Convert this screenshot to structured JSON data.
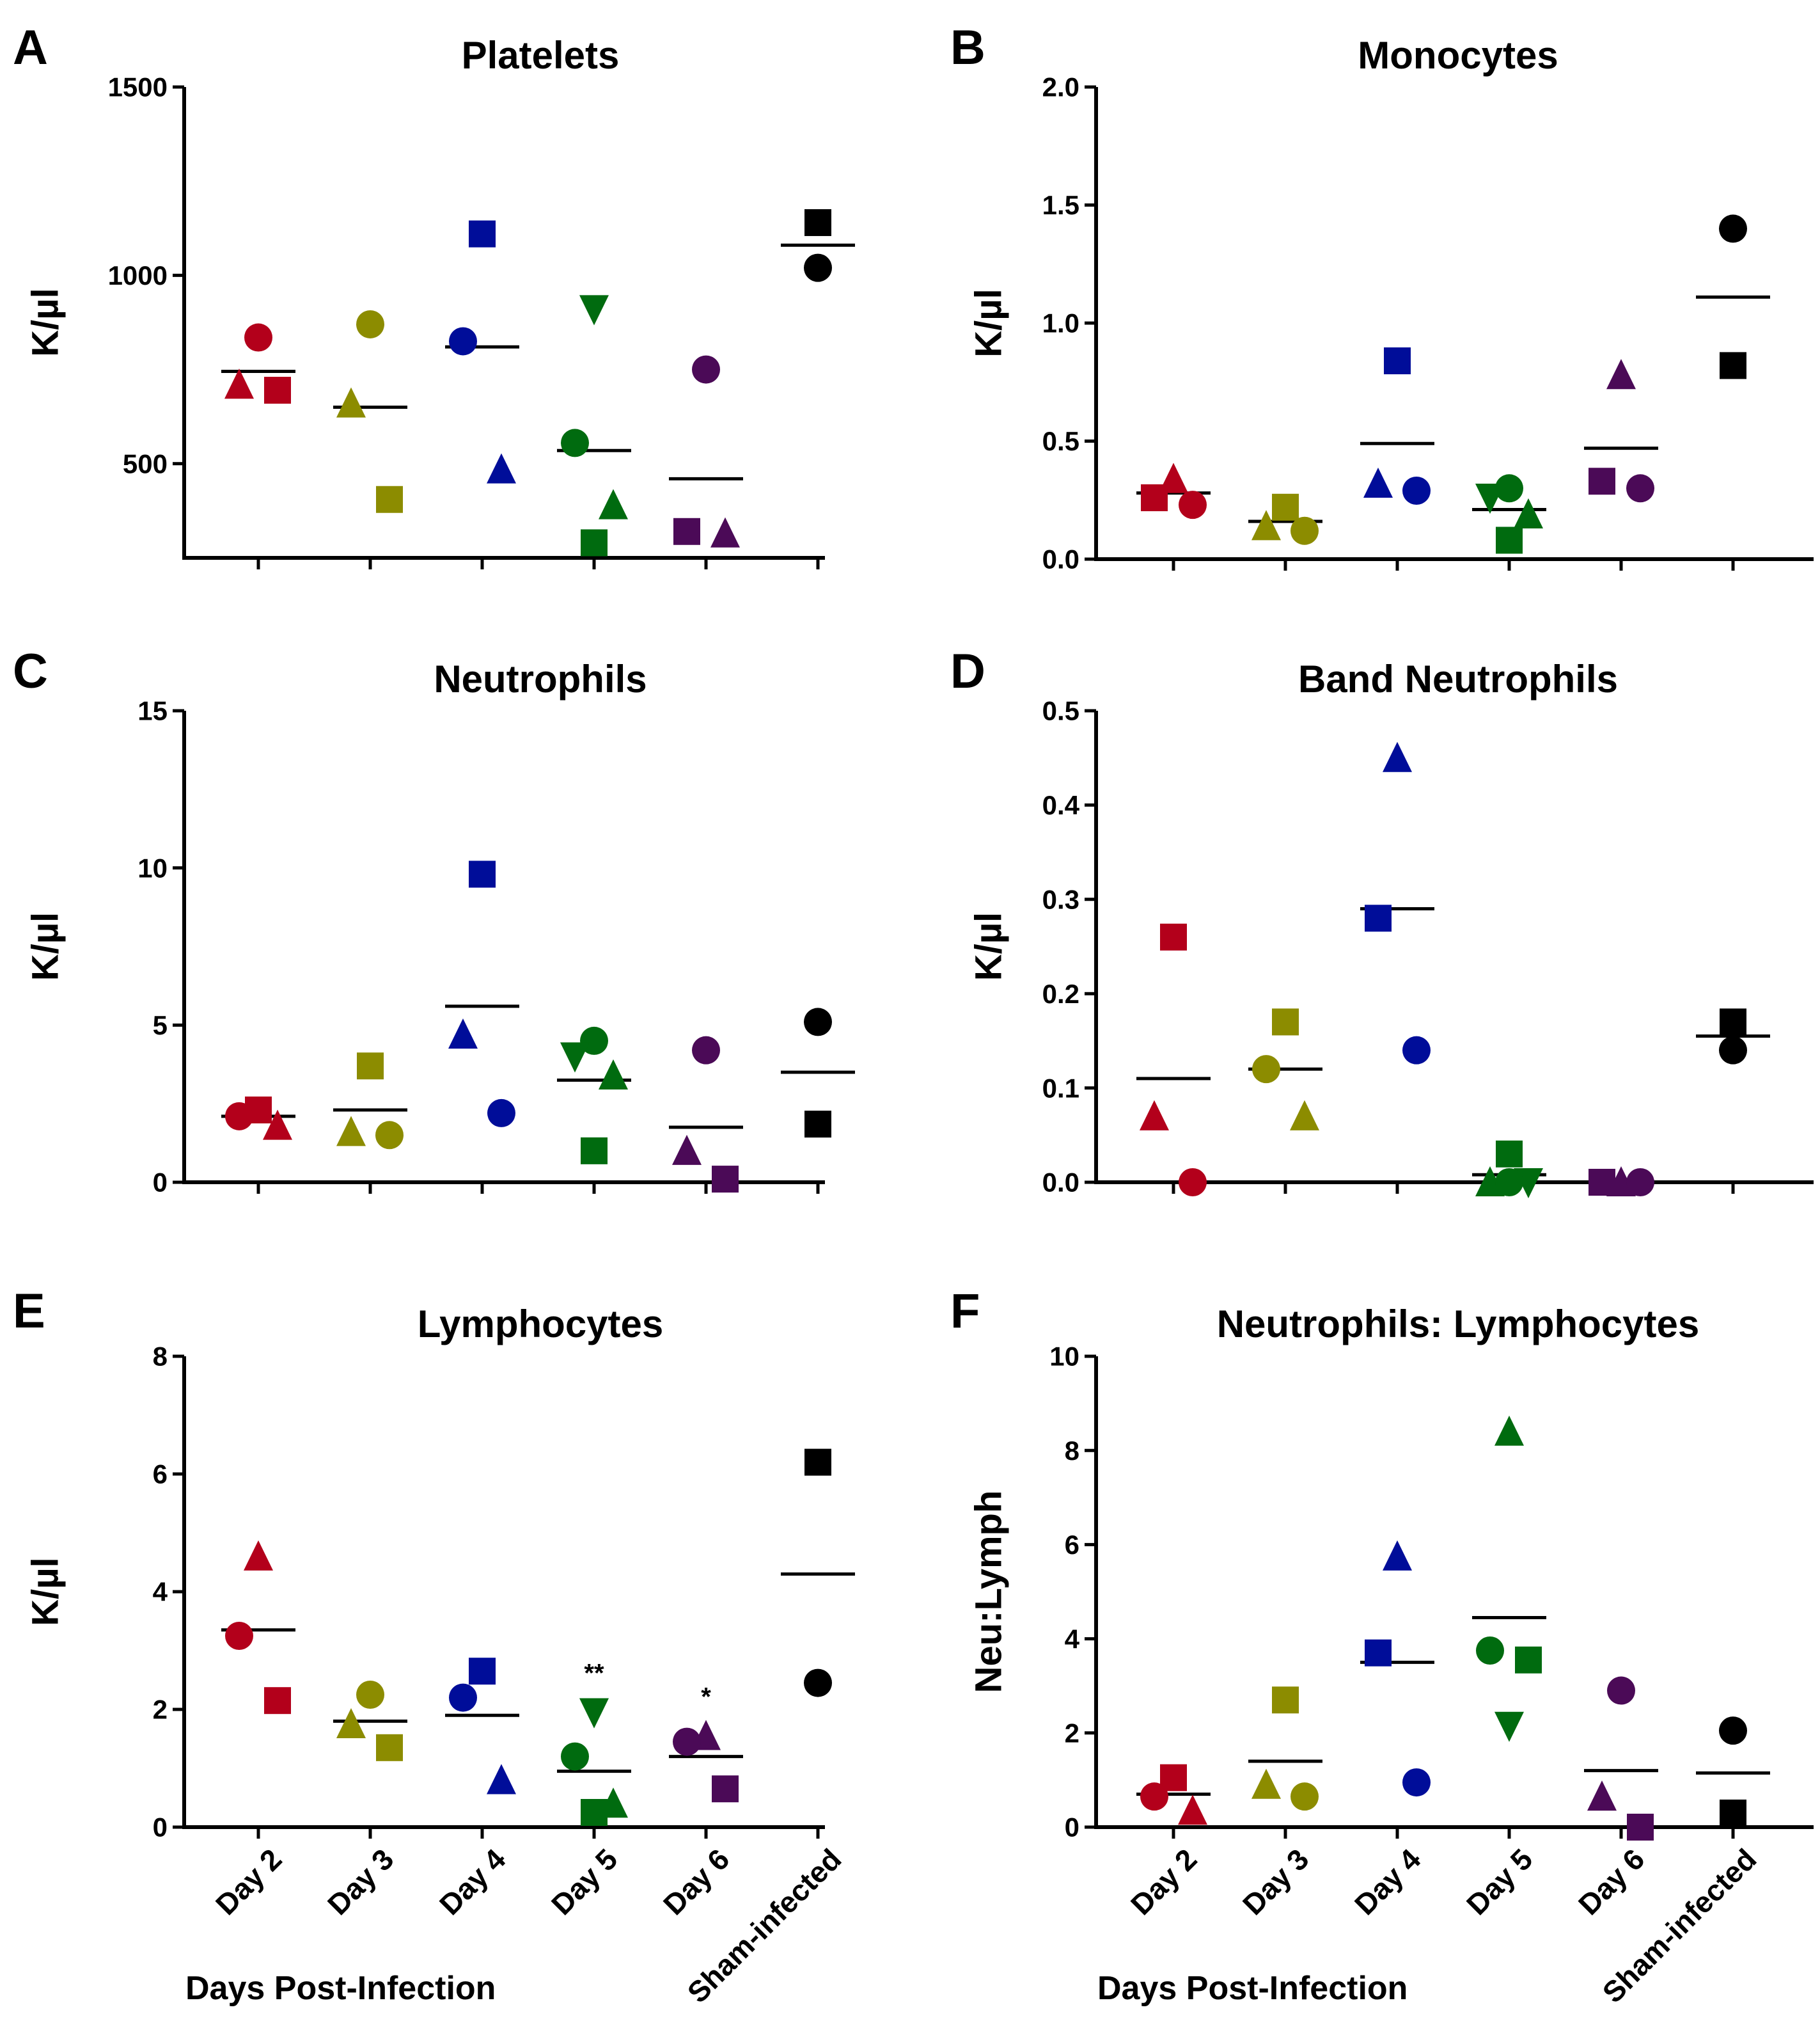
{
  "figure": {
    "categories": [
      "Day 2",
      "Day 3",
      "Day 4",
      "Day 5",
      "Day 6",
      "Sham-infected"
    ],
    "category_colors": [
      "#b3001b",
      "#8c8c00",
      "#000d99",
      "#006b0f",
      "#4b0a57",
      "#000000"
    ],
    "xaxis_title": "Days Post-Infection"
  },
  "chart_data": [
    {
      "panel": "A",
      "type": "scatter",
      "title": "Platelets",
      "ylabel": "K/µl",
      "ylim": [
        250,
        1500
      ],
      "yticks": [
        500,
        1000,
        1500
      ],
      "categories": [
        "Day 2",
        "Day 3",
        "Day 4",
        "Day 5",
        "Day 6",
        "Sham-infected"
      ],
      "groups": [
        {
          "category": "Day 2",
          "mean": 745,
          "points": [
            {
              "shape": "circle",
              "value": 835
            },
            {
              "shape": "triangle",
              "value": 710
            },
            {
              "shape": "square",
              "value": 695
            }
          ]
        },
        {
          "category": "Day 3",
          "mean": 650,
          "points": [
            {
              "shape": "circle",
              "value": 870
            },
            {
              "shape": "triangle",
              "value": 660
            },
            {
              "shape": "square",
              "value": 405
            }
          ]
        },
        {
          "category": "Day 4",
          "mean": 810,
          "points": [
            {
              "shape": "square",
              "value": 1110
            },
            {
              "shape": "circle",
              "value": 825
            },
            {
              "shape": "triangle",
              "value": 485
            }
          ]
        },
        {
          "category": "Day 5",
          "mean": 535,
          "points": [
            {
              "shape": "triangle-down",
              "value": 910
            },
            {
              "shape": "circle",
              "value": 555
            },
            {
              "shape": "triangle",
              "value": 390
            },
            {
              "shape": "square",
              "value": 290
            }
          ]
        },
        {
          "category": "Day 6",
          "mean": 460,
          "points": [
            {
              "shape": "circle",
              "value": 750
            },
            {
              "shape": "square",
              "value": 320
            },
            {
              "shape": "triangle",
              "value": 315
            }
          ]
        },
        {
          "category": "Sham-infected",
          "mean": 1080,
          "points": [
            {
              "shape": "square",
              "value": 1140
            },
            {
              "shape": "circle",
              "value": 1020
            }
          ]
        }
      ]
    },
    {
      "panel": "B",
      "type": "scatter",
      "title": "Monocytes",
      "ylabel": "K/µl",
      "ylim": [
        0,
        2.0
      ],
      "yticks": [
        0.0,
        0.5,
        1.0,
        1.5,
        2.0
      ],
      "categories": [
        "Day 2",
        "Day 3",
        "Day 4",
        "Day 5",
        "Day 6",
        "Sham-infected"
      ],
      "groups": [
        {
          "category": "Day 2",
          "mean": 0.28,
          "points": [
            {
              "shape": "triangle",
              "value": 0.34
            },
            {
              "shape": "square",
              "value": 0.26
            },
            {
              "shape": "circle",
              "value": 0.23
            }
          ]
        },
        {
          "category": "Day 3",
          "mean": 0.16,
          "points": [
            {
              "shape": "square",
              "value": 0.22
            },
            {
              "shape": "triangle",
              "value": 0.14
            },
            {
              "shape": "circle",
              "value": 0.12
            }
          ]
        },
        {
          "category": "Day 4",
          "mean": 0.49,
          "points": [
            {
              "shape": "square",
              "value": 0.84
            },
            {
              "shape": "triangle",
              "value": 0.32
            },
            {
              "shape": "circle",
              "value": 0.29
            }
          ]
        },
        {
          "category": "Day 5",
          "mean": 0.21,
          "points": [
            {
              "shape": "triangle-down",
              "value": 0.26
            },
            {
              "shape": "circle",
              "value": 0.3
            },
            {
              "shape": "triangle",
              "value": 0.19
            },
            {
              "shape": "square",
              "value": 0.08
            }
          ]
        },
        {
          "category": "Day 6",
          "mean": 0.47,
          "points": [
            {
              "shape": "triangle",
              "value": 0.78
            },
            {
              "shape": "square",
              "value": 0.33
            },
            {
              "shape": "circle",
              "value": 0.3
            }
          ]
        },
        {
          "category": "Sham-infected",
          "mean": 1.11,
          "points": [
            {
              "shape": "circle",
              "value": 1.4
            },
            {
              "shape": "square",
              "value": 0.82
            }
          ]
        }
      ]
    },
    {
      "panel": "C",
      "type": "scatter",
      "title": "Neutrophils",
      "ylabel": "K/µl",
      "ylim": [
        0,
        15
      ],
      "yticks": [
        0,
        5,
        10,
        15
      ],
      "categories": [
        "Day 2",
        "Day 3",
        "Day 4",
        "Day 5",
        "Day 6",
        "Sham-infected"
      ],
      "groups": [
        {
          "category": "Day 2",
          "mean": 2.1,
          "points": [
            {
              "shape": "square",
              "value": 2.3
            },
            {
              "shape": "circle",
              "value": 2.1
            },
            {
              "shape": "triangle",
              "value": 1.8
            }
          ]
        },
        {
          "category": "Day 3",
          "mean": 2.3,
          "points": [
            {
              "shape": "square",
              "value": 3.7
            },
            {
              "shape": "triangle",
              "value": 1.6
            },
            {
              "shape": "circle",
              "value": 1.5
            }
          ]
        },
        {
          "category": "Day 4",
          "mean": 5.6,
          "points": [
            {
              "shape": "square",
              "value": 9.8
            },
            {
              "shape": "triangle",
              "value": 4.7
            },
            {
              "shape": "circle",
              "value": 2.2
            }
          ]
        },
        {
          "category": "Day 5",
          "mean": 3.25,
          "points": [
            {
              "shape": "circle",
              "value": 4.5
            },
            {
              "shape": "triangle-down",
              "value": 4.0
            },
            {
              "shape": "triangle",
              "value": 3.4
            },
            {
              "shape": "square",
              "value": 1.0
            }
          ]
        },
        {
          "category": "Day 6",
          "mean": 1.75,
          "points": [
            {
              "shape": "circle",
              "value": 4.2
            },
            {
              "shape": "triangle",
              "value": 1.0
            },
            {
              "shape": "square",
              "value": 0.1
            }
          ]
        },
        {
          "category": "Sham-infected",
          "mean": 3.5,
          "points": [
            {
              "shape": "circle",
              "value": 5.1
            },
            {
              "shape": "square",
              "value": 1.85
            }
          ]
        }
      ]
    },
    {
      "panel": "D",
      "type": "scatter",
      "title": "Band Neutrophils",
      "ylabel": "K/µl",
      "ylim": [
        0,
        0.5
      ],
      "yticks": [
        0.0,
        0.1,
        0.2,
        0.3,
        0.4,
        0.5
      ],
      "categories": [
        "Day 2",
        "Day 3",
        "Day 4",
        "Day 5",
        "Day 6",
        "Sham-infected"
      ],
      "groups": [
        {
          "category": "Day 2",
          "mean": 0.11,
          "points": [
            {
              "shape": "square",
              "value": 0.26
            },
            {
              "shape": "triangle",
              "value": 0.07
            },
            {
              "shape": "circle",
              "value": 0.0
            }
          ]
        },
        {
          "category": "Day 3",
          "mean": 0.12,
          "points": [
            {
              "shape": "square",
              "value": 0.17
            },
            {
              "shape": "circle",
              "value": 0.12
            },
            {
              "shape": "triangle",
              "value": 0.07
            }
          ]
        },
        {
          "category": "Day 4",
          "mean": 0.29,
          "points": [
            {
              "shape": "triangle",
              "value": 0.45
            },
            {
              "shape": "square",
              "value": 0.28
            },
            {
              "shape": "circle",
              "value": 0.14
            }
          ]
        },
        {
          "category": "Day 5",
          "mean": 0.008,
          "points": [
            {
              "shape": "square",
              "value": 0.03
            },
            {
              "shape": "triangle",
              "value": 0.0
            },
            {
              "shape": "triangle-down",
              "value": 0.0
            },
            {
              "shape": "circle",
              "value": 0.0
            }
          ]
        },
        {
          "category": "Day 6",
          "mean": 0.0,
          "points": [
            {
              "shape": "triangle",
              "value": 0.0
            },
            {
              "shape": "square",
              "value": 0.0
            },
            {
              "shape": "circle",
              "value": 0.0
            }
          ]
        },
        {
          "category": "Sham-infected",
          "mean": 0.155,
          "points": [
            {
              "shape": "square",
              "value": 0.17
            },
            {
              "shape": "circle",
              "value": 0.14
            }
          ]
        }
      ]
    },
    {
      "panel": "E",
      "type": "scatter",
      "title": "Lymphocytes",
      "ylabel": "K/µl",
      "ylim": [
        0,
        8
      ],
      "yticks": [
        0,
        2,
        4,
        6,
        8
      ],
      "categories": [
        "Day 2",
        "Day 3",
        "Day 4",
        "Day 5",
        "Day 6",
        "Sham-infected"
      ],
      "significance": {
        "Day 5": "**",
        "Day 6": "*"
      },
      "groups": [
        {
          "category": "Day 2",
          "mean": 3.35,
          "points": [
            {
              "shape": "triangle",
              "value": 4.6
            },
            {
              "shape": "circle",
              "value": 3.25
            },
            {
              "shape": "square",
              "value": 2.15
            }
          ]
        },
        {
          "category": "Day 3",
          "mean": 1.8,
          "points": [
            {
              "shape": "circle",
              "value": 2.25
            },
            {
              "shape": "triangle",
              "value": 1.75
            },
            {
              "shape": "square",
              "value": 1.35
            }
          ]
        },
        {
          "category": "Day 4",
          "mean": 1.9,
          "points": [
            {
              "shape": "square",
              "value": 2.65
            },
            {
              "shape": "circle",
              "value": 2.2
            },
            {
              "shape": "triangle",
              "value": 0.8
            }
          ]
        },
        {
          "category": "Day 5",
          "mean": 0.95,
          "points": [
            {
              "shape": "triangle-down",
              "value": 1.95
            },
            {
              "shape": "circle",
              "value": 1.2
            },
            {
              "shape": "triangle",
              "value": 0.4
            },
            {
              "shape": "square",
              "value": 0.25
            }
          ]
        },
        {
          "category": "Day 6",
          "mean": 1.2,
          "points": [
            {
              "shape": "triangle",
              "value": 1.55
            },
            {
              "shape": "circle",
              "value": 1.45
            },
            {
              "shape": "square",
              "value": 0.65
            }
          ]
        },
        {
          "category": "Sham-infected",
          "mean": 4.3,
          "points": [
            {
              "shape": "square",
              "value": 6.2
            },
            {
              "shape": "circle",
              "value": 2.45
            }
          ]
        }
      ]
    },
    {
      "panel": "F",
      "type": "scatter",
      "title": "Neutrophils: Lymphocytes",
      "ylabel": "Neu:Lymph",
      "ylim": [
        0,
        10
      ],
      "yticks": [
        0,
        2,
        4,
        6,
        8,
        10
      ],
      "categories": [
        "Day 2",
        "Day 3",
        "Day 4",
        "Day 5",
        "Day 6",
        "Sham-infected"
      ],
      "groups": [
        {
          "category": "Day 2",
          "mean": 0.7,
          "points": [
            {
              "shape": "square",
              "value": 1.05
            },
            {
              "shape": "circle",
              "value": 0.65
            },
            {
              "shape": "triangle",
              "value": 0.35
            }
          ]
        },
        {
          "category": "Day 3",
          "mean": 1.4,
          "points": [
            {
              "shape": "square",
              "value": 2.7
            },
            {
              "shape": "triangle",
              "value": 0.9
            },
            {
              "shape": "circle",
              "value": 0.65
            }
          ]
        },
        {
          "category": "Day 4",
          "mean": 3.5,
          "points": [
            {
              "shape": "triangle",
              "value": 5.75
            },
            {
              "shape": "square",
              "value": 3.7
            },
            {
              "shape": "circle",
              "value": 0.95
            }
          ]
        },
        {
          "category": "Day 5",
          "mean": 4.45,
          "points": [
            {
              "shape": "triangle",
              "value": 8.4
            },
            {
              "shape": "circle",
              "value": 3.75
            },
            {
              "shape": "square",
              "value": 3.55
            },
            {
              "shape": "triangle-down",
              "value": 2.15
            }
          ]
        },
        {
          "category": "Day 6",
          "mean": 1.2,
          "points": [
            {
              "shape": "circle",
              "value": 2.9
            },
            {
              "shape": "triangle",
              "value": 0.65
            },
            {
              "shape": "square",
              "value": 0.0
            }
          ]
        },
        {
          "category": "Sham-infected",
          "mean": 1.15,
          "points": [
            {
              "shape": "circle",
              "value": 2.05
            },
            {
              "shape": "square",
              "value": 0.3
            }
          ]
        }
      ]
    }
  ]
}
